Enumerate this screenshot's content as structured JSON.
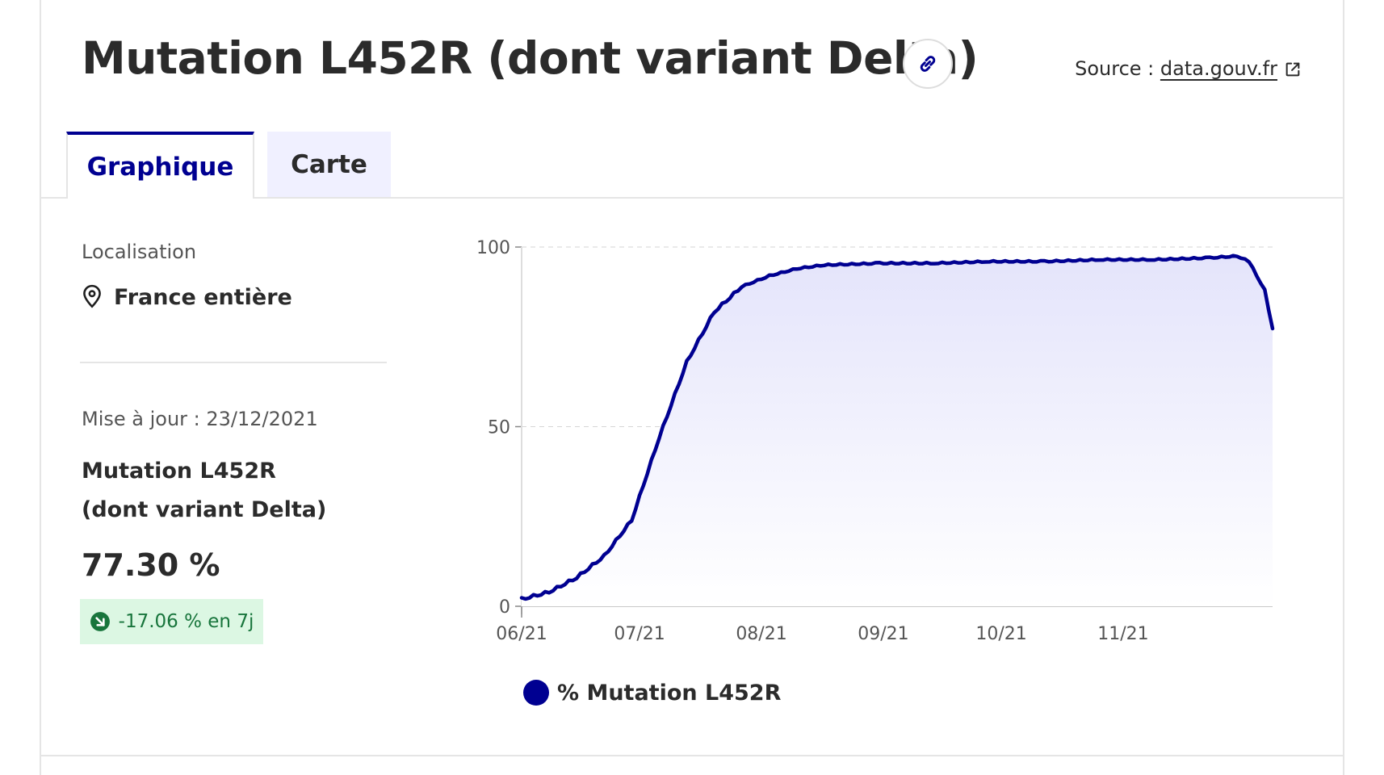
{
  "header": {
    "title": "Mutation L452R (dont variant Delta)",
    "source_label": "Source :",
    "source_link": "data.gouv.fr",
    "link_icon": "link-icon",
    "external_icon": "external-link-icon"
  },
  "tabs": [
    {
      "label": "Graphique",
      "active": true
    },
    {
      "label": "Carte",
      "active": false
    }
  ],
  "sidebar": {
    "location_label": "Localisation",
    "location_value": "France entière",
    "location_icon": "map-pin-icon",
    "update_text": "Mise à jour : 23/12/2021",
    "indicator_name": "Mutation L452R (dont variant Delta)",
    "indicator_value": "77.30 %",
    "trend_text": "-17.06 % en 7j",
    "trend_icon": "arrow-down-right-icon"
  },
  "colors": {
    "accent": "#000091",
    "trend_bg": "#dcf7e3",
    "trend_fg": "#18753c",
    "tab_inactive_bg": "#f0f0ff"
  },
  "chart_data": {
    "type": "area",
    "x": [
      "2021-06-01",
      "2021-06-08",
      "2021-06-15",
      "2021-06-22",
      "2021-06-29",
      "2021-07-06",
      "2021-07-13",
      "2021-07-20",
      "2021-07-27",
      "2021-08-03",
      "2021-08-10",
      "2021-08-17",
      "2021-08-31",
      "2021-09-14",
      "2021-09-28",
      "2021-10-12",
      "2021-10-26",
      "2021-11-09",
      "2021-11-23",
      "2021-11-30",
      "2021-12-03",
      "2021-12-07",
      "2021-12-09"
    ],
    "series": [
      {
        "name": "% Mutation L452R",
        "values": [
          2,
          4,
          8,
          14,
          24,
          47,
          68,
          82,
          89,
          92,
          94,
          95,
          95.5,
          95.5,
          96,
          96,
          96.5,
          96.5,
          97,
          97.5,
          96,
          88,
          77.3
        ]
      }
    ],
    "xticks": [
      "06/21",
      "07/21",
      "08/21",
      "09/21",
      "10/21",
      "11/21"
    ],
    "yticks": [
      "0",
      "50",
      "100"
    ],
    "ylim": [
      0,
      100
    ],
    "grid": true,
    "legend": "bottom"
  }
}
